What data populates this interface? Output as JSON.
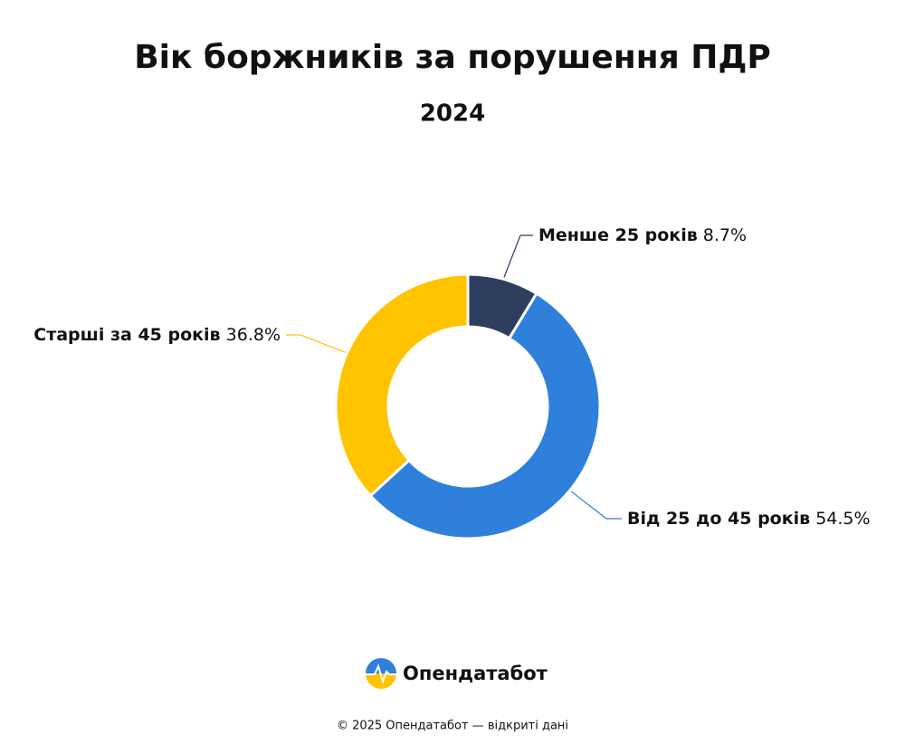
{
  "chart_data": {
    "type": "pie",
    "title": "Вік боржників за порушення ПДР",
    "subtitle": "2024",
    "categories": [
      "Менше 25 років",
      "Від 25 до 45 років",
      "Старші за 45 років"
    ],
    "values": [
      8.7,
      54.5,
      36.8
    ],
    "value_labels": [
      "8.7%",
      "54.5%",
      "36.8%"
    ],
    "colors": [
      "#2d3e5f",
      "#2f80db",
      "#ffc300"
    ]
  },
  "brand": "Опендатабот",
  "footer": "© 2025 Опендатабот — відкриті дані"
}
